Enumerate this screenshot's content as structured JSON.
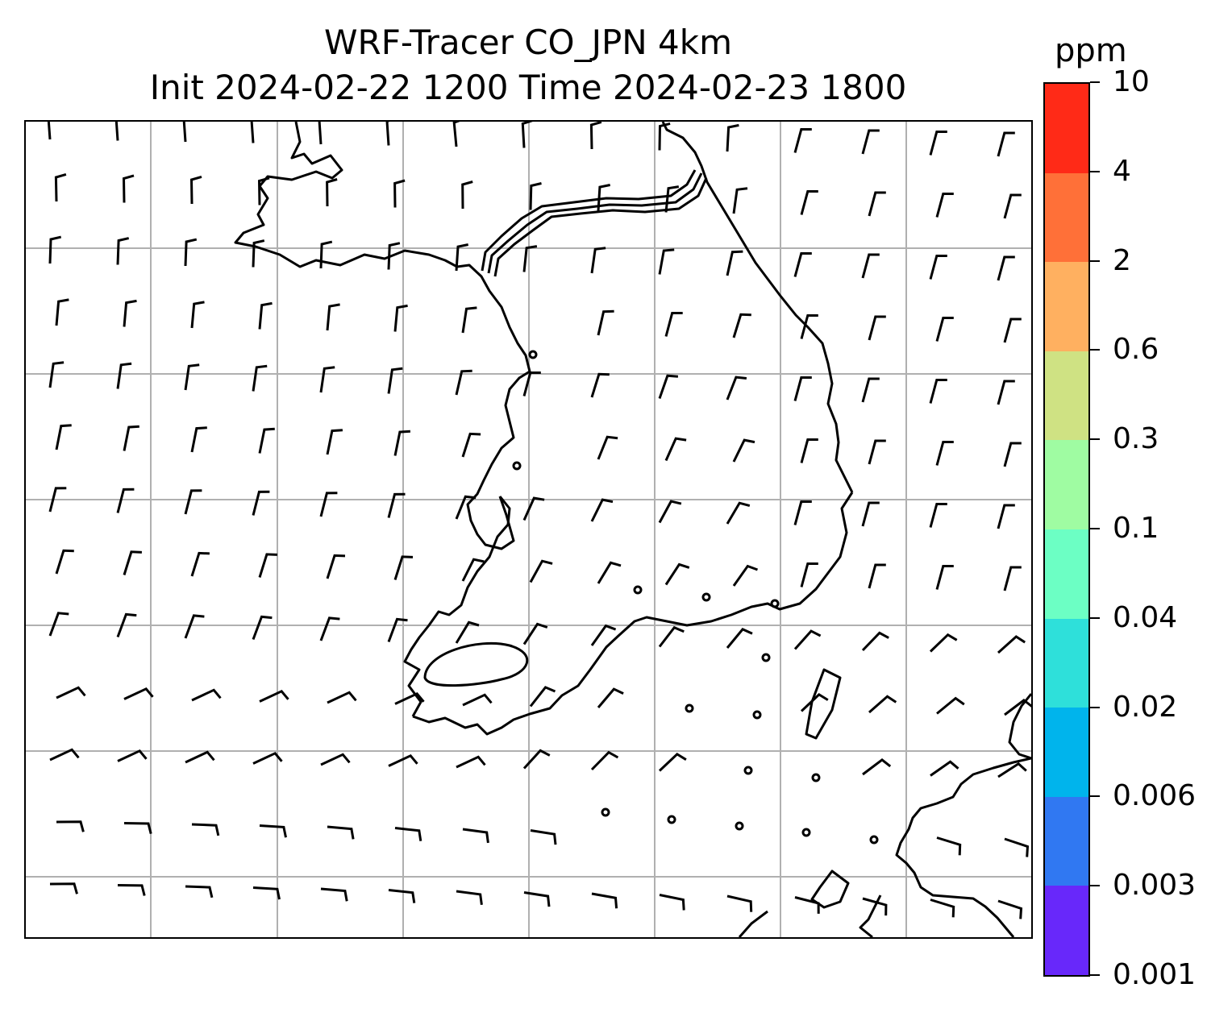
{
  "title": {
    "line1": "WRF-Tracer CO_JPN 4km",
    "line2": "Init 2024-02-22 1200 Time 2024-02-23 1800"
  },
  "colorbar": {
    "unit": "ppm",
    "tick_labels": [
      "10",
      "4",
      "2",
      "0.6",
      "0.3",
      "0.1",
      "0.04",
      "0.02",
      "0.006",
      "0.003",
      "0.001"
    ],
    "colors_top_to_bottom": [
      "#ff2a17",
      "#ff7038",
      "#ffb060",
      "#cfe283",
      "#9ffca2",
      "#6cffc4",
      "#2ee0da",
      "#00b4ec",
      "#3078f2",
      "#6828fa"
    ]
  },
  "map": {
    "grid": true,
    "gridline_color": "#b0b0b0",
    "coastline_color": "#000000",
    "wind_symbols": "wind-barbs"
  }
}
